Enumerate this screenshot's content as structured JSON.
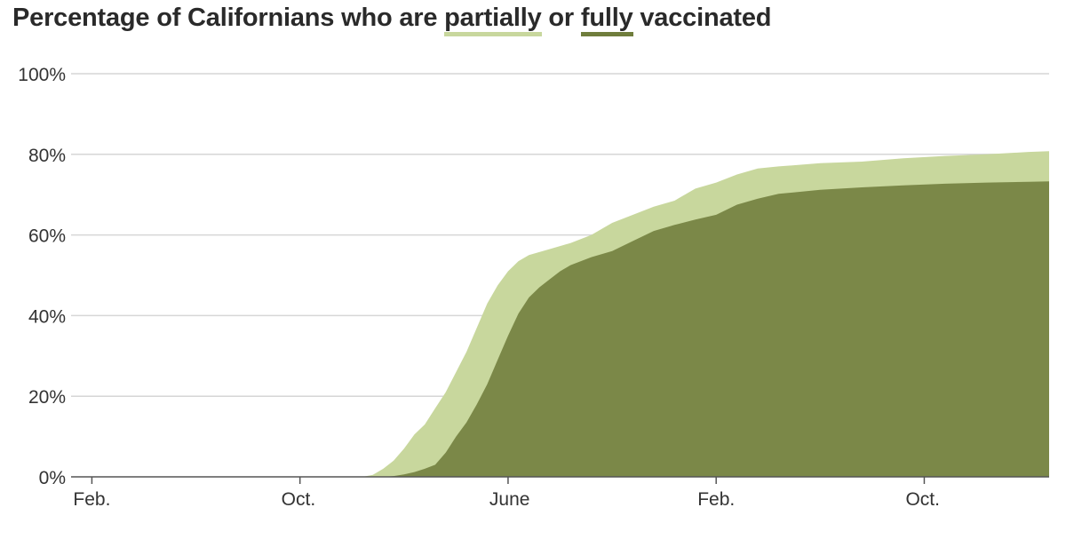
{
  "title": {
    "prefix": "Percentage of Californians who are ",
    "partial_word": "partially",
    "middle": " or ",
    "full_word": "fully",
    "suffix": " vaccinated"
  },
  "colors": {
    "partial": "#c8d79d",
    "full": "#6f7d3c",
    "gridline": "#d6d6d6",
    "axis": "#555555",
    "text": "#2a2a2a"
  },
  "chart_data": {
    "type": "area",
    "title": "Percentage of Californians who are partially or fully vaccinated",
    "xlabel": "",
    "ylabel": "",
    "ylim": [
      0,
      100
    ],
    "xlim": [
      0,
      47
    ],
    "x_unit_note": "",
    "y_ticks": [
      {
        "value": 0,
        "label": "0%"
      },
      {
        "value": 20,
        "label": "20%"
      },
      {
        "value": 40,
        "label": "40%"
      },
      {
        "value": 60,
        "label": "60%"
      },
      {
        "value": 80,
        "label": "80%"
      },
      {
        "value": 100,
        "label": "100%"
      }
    ],
    "x_ticks": [
      {
        "value": 1,
        "label": "Feb."
      },
      {
        "value": 11,
        "label": "Oct."
      },
      {
        "value": 21,
        "label": "June"
      },
      {
        "value": 31,
        "label": "Feb."
      },
      {
        "value": 41,
        "label": "Oct."
      }
    ],
    "grid": true,
    "series": [
      {
        "name": "partially",
        "points": [
          [
            0,
            0
          ],
          [
            14,
            0
          ],
          [
            14.5,
            0.5
          ],
          [
            15,
            2
          ],
          [
            15.5,
            4
          ],
          [
            16,
            7
          ],
          [
            16.5,
            10.5
          ],
          [
            17,
            13
          ],
          [
            17.5,
            17
          ],
          [
            18,
            21
          ],
          [
            18.5,
            26
          ],
          [
            19,
            31
          ],
          [
            19.5,
            37
          ],
          [
            20,
            43
          ],
          [
            20.5,
            47.5
          ],
          [
            21,
            51
          ],
          [
            21.5,
            53.5
          ],
          [
            22,
            55
          ],
          [
            23,
            56.5
          ],
          [
            24,
            58
          ],
          [
            25,
            60
          ],
          [
            26,
            63
          ],
          [
            27,
            65
          ],
          [
            28,
            67
          ],
          [
            29,
            68.5
          ],
          [
            30,
            71.5
          ],
          [
            31,
            73
          ],
          [
            32,
            75
          ],
          [
            33,
            76.5
          ],
          [
            34,
            77
          ],
          [
            36,
            77.8
          ],
          [
            38,
            78.2
          ],
          [
            40,
            79
          ],
          [
            42,
            79.6
          ],
          [
            44,
            80
          ],
          [
            46,
            80.6
          ],
          [
            47,
            80.8
          ]
        ]
      },
      {
        "name": "fully",
        "points": [
          [
            0,
            0
          ],
          [
            15,
            0
          ],
          [
            15.5,
            0.2
          ],
          [
            16,
            0.6
          ],
          [
            16.5,
            1.2
          ],
          [
            17,
            2
          ],
          [
            17.5,
            3
          ],
          [
            18,
            6
          ],
          [
            18.5,
            10
          ],
          [
            19,
            13.5
          ],
          [
            19.5,
            18
          ],
          [
            20,
            23
          ],
          [
            20.5,
            29
          ],
          [
            21,
            35
          ],
          [
            21.5,
            40.5
          ],
          [
            22,
            44.5
          ],
          [
            22.5,
            47
          ],
          [
            23,
            49
          ],
          [
            23.5,
            51
          ],
          [
            24,
            52.5
          ],
          [
            25,
            54.5
          ],
          [
            26,
            56
          ],
          [
            27,
            58.5
          ],
          [
            28,
            61
          ],
          [
            29,
            62.5
          ],
          [
            30,
            63.8
          ],
          [
            31,
            65
          ],
          [
            32,
            67.5
          ],
          [
            33,
            69
          ],
          [
            34,
            70.2
          ],
          [
            36,
            71.2
          ],
          [
            38,
            71.8
          ],
          [
            40,
            72.3
          ],
          [
            42,
            72.7
          ],
          [
            44,
            73
          ],
          [
            46,
            73.2
          ],
          [
            47,
            73.3
          ]
        ]
      }
    ]
  }
}
